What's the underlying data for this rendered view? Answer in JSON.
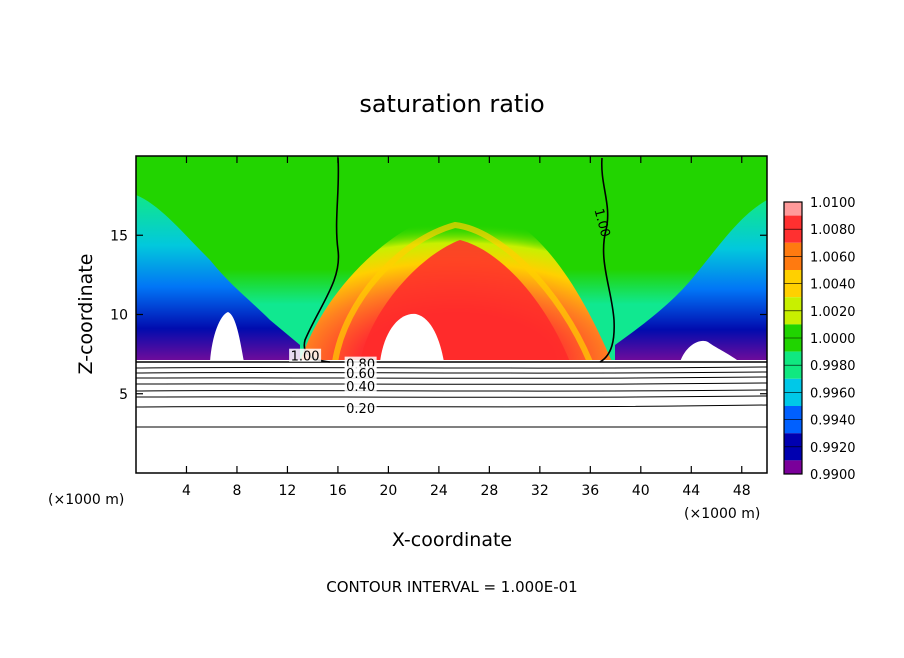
{
  "chart_data": {
    "type": "heatmap",
    "title": "saturation ratio",
    "xlabel": "X-coordinate",
    "ylabel": "Z-coordinate",
    "x_unit_left": "(×1000 m)",
    "x_unit_right": "(×1000 m)",
    "xlim": [
      0,
      50
    ],
    "ylim": [
      0,
      20
    ],
    "x_ticks": [
      4,
      8,
      12,
      16,
      20,
      24,
      28,
      32,
      36,
      40,
      44,
      48
    ],
    "y_ticks": [
      5,
      10,
      15
    ],
    "colorbar": {
      "levels": [
        "1.0100",
        "1.0080",
        "1.0060",
        "1.0040",
        "1.0020",
        "1.0000",
        "0.9980",
        "0.9960",
        "0.9940",
        "0.9920",
        "0.9900"
      ],
      "colors": [
        "#ff9a9a",
        "#ff3030",
        "#ff7a10",
        "#ffd000",
        "#c8f000",
        "#20d400",
        "#10e880",
        "#00c8e8",
        "#0060ff",
        "#0000b0",
        "#7a009a"
      ]
    },
    "contour_labels": [
      {
        "text": "1.00",
        "x": 13.4,
        "y": 7.4
      },
      {
        "text": "1.00",
        "x": 37.0,
        "y": 15.8
      },
      {
        "text": "0.80",
        "x": 17.8,
        "y": 6.9
      },
      {
        "text": "0.60",
        "x": 17.8,
        "y": 6.3
      },
      {
        "text": "0.40",
        "x": 17.8,
        "y": 5.5
      },
      {
        "text": "0.20",
        "x": 17.8,
        "y": 4.1
      }
    ],
    "footer": "CONTOUR INTERVAL = 1.000E-01"
  }
}
